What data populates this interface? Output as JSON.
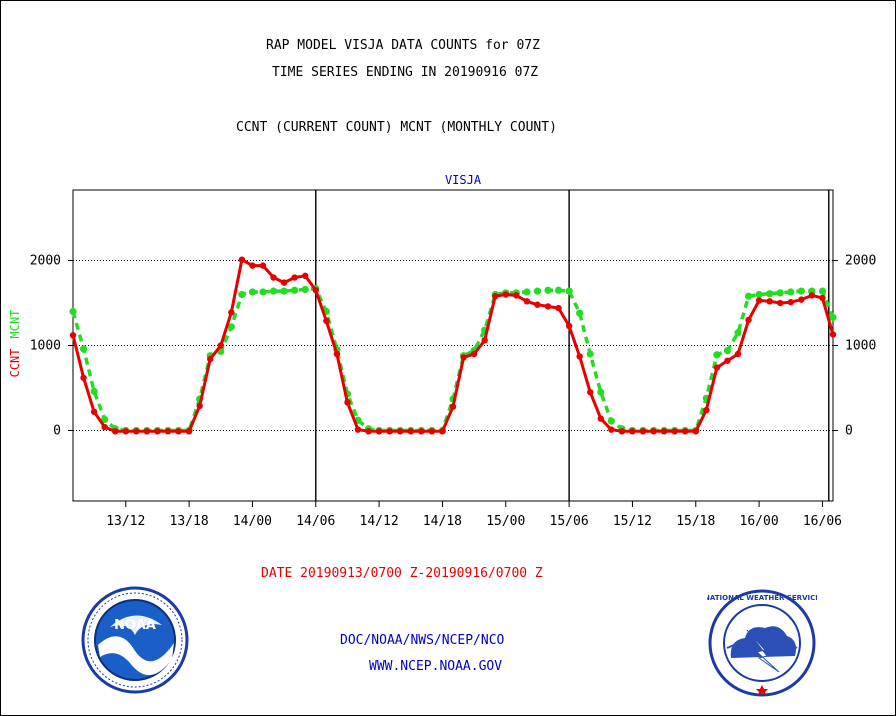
{
  "header": {
    "title_line1": "RAP MODEL VISJA DATA COUNTS for 07Z",
    "title_line2": "TIME SERIES ENDING IN 20190916 07Z",
    "subtitle": "CCNT (CURRENT COUNT) MCNT (MONTHLY COUNT)"
  },
  "footer": {
    "date_range": "DATE 20190913/0700 Z-20190916/0700 Z",
    "org_path": "DOC/NOAA/NWS/NCEP/NCO",
    "url": "WWW.NCEP.NOAA.GOV"
  },
  "logos": {
    "noaa_text": "NOAA",
    "nws_text": "NATIONAL WEATHER SERVICE"
  },
  "colors": {
    "ccnt": "#e60000",
    "mcnt": "#22dd22",
    "title": "#000000",
    "label_blue": "#0000cc",
    "date_red": "#e60000"
  },
  "chart_data": {
    "type": "line",
    "title": "VISJA",
    "ylabel_ccnt": "CCNT",
    "ylabel_mcnt": "MCNT",
    "ylim": [
      -830,
      2830
    ],
    "xlim": [
      0,
      72
    ],
    "y_ticks": [
      0,
      1000,
      2000
    ],
    "y_tick_labels": [
      "0",
      "1000",
      "2000"
    ],
    "x_ticks": [
      5,
      11,
      17,
      23,
      29,
      35,
      41,
      47,
      53,
      59,
      65,
      71
    ],
    "x_tick_labels": [
      "13/12",
      "13/18",
      "14/00",
      "14/06",
      "14/12",
      "14/18",
      "15/00",
      "15/06",
      "15/12",
      "15/18",
      "16/00",
      "16/06"
    ],
    "day_lines": [
      23,
      47,
      71.6
    ],
    "grid": "horizontal-dotted",
    "series": [
      {
        "name": "CCNT",
        "style": "solid",
        "x": [
          0,
          1,
          2,
          3,
          4,
          5,
          6,
          7,
          8,
          9,
          10,
          11,
          12,
          13,
          14,
          15,
          16,
          17,
          18,
          19,
          20,
          21,
          22,
          23,
          24,
          25,
          26,
          27,
          28,
          29,
          30,
          31,
          32,
          33,
          34,
          35,
          36,
          37,
          38,
          39,
          40,
          41,
          42,
          43,
          44,
          45,
          46,
          47,
          48,
          49,
          50,
          51,
          52,
          53,
          54,
          55,
          56,
          57,
          58,
          59,
          60,
          61,
          62,
          63,
          64,
          65,
          66,
          67,
          68,
          69,
          70,
          71,
          72
        ],
        "values": [
          1120,
          620,
          220,
          40,
          -10,
          -10,
          -10,
          -10,
          -10,
          -10,
          -10,
          -10,
          290,
          840,
          1000,
          1390,
          2010,
          1940,
          1940,
          1800,
          1740,
          1800,
          1820,
          1650,
          1290,
          900,
          330,
          10,
          -10,
          -10,
          -10,
          -10,
          -10,
          -10,
          -10,
          -10,
          280,
          860,
          900,
          1060,
          1580,
          1600,
          1590,
          1520,
          1480,
          1460,
          1440,
          1230,
          870,
          450,
          140,
          10,
          -10,
          -10,
          -10,
          -10,
          -10,
          -10,
          -10,
          -10,
          240,
          740,
          820,
          900,
          1300,
          1530,
          1520,
          1500,
          1510,
          1540,
          1590,
          1560,
          1130
        ]
      },
      {
        "name": "MCNT",
        "style": "dashed",
        "x": [
          0,
          1,
          2,
          3,
          4,
          5,
          6,
          7,
          8,
          9,
          10,
          11,
          12,
          13,
          14,
          15,
          16,
          17,
          18,
          19,
          20,
          21,
          22,
          23,
          24,
          25,
          26,
          27,
          28,
          29,
          30,
          31,
          32,
          33,
          34,
          35,
          36,
          37,
          38,
          39,
          40,
          41,
          42,
          43,
          44,
          45,
          46,
          47,
          48,
          49,
          50,
          51,
          52,
          53,
          54,
          55,
          56,
          57,
          58,
          59,
          60,
          61,
          62,
          63,
          64,
          65,
          66,
          67,
          68,
          69,
          70,
          71,
          72
        ],
        "values": [
          1400,
          960,
          460,
          130,
          20,
          0,
          0,
          0,
          0,
          0,
          0,
          0,
          370,
          880,
          930,
          1220,
          1600,
          1630,
          1630,
          1640,
          1640,
          1650,
          1660,
          1670,
          1400,
          950,
          430,
          120,
          20,
          0,
          0,
          0,
          0,
          0,
          0,
          0,
          370,
          880,
          940,
          1180,
          1600,
          1620,
          1620,
          1630,
          1640,
          1650,
          1650,
          1640,
          1380,
          900,
          450,
          110,
          20,
          0,
          0,
          0,
          0,
          0,
          0,
          0,
          380,
          890,
          940,
          1150,
          1580,
          1600,
          1610,
          1620,
          1630,
          1640,
          1640,
          1640,
          1330
        ]
      }
    ]
  }
}
